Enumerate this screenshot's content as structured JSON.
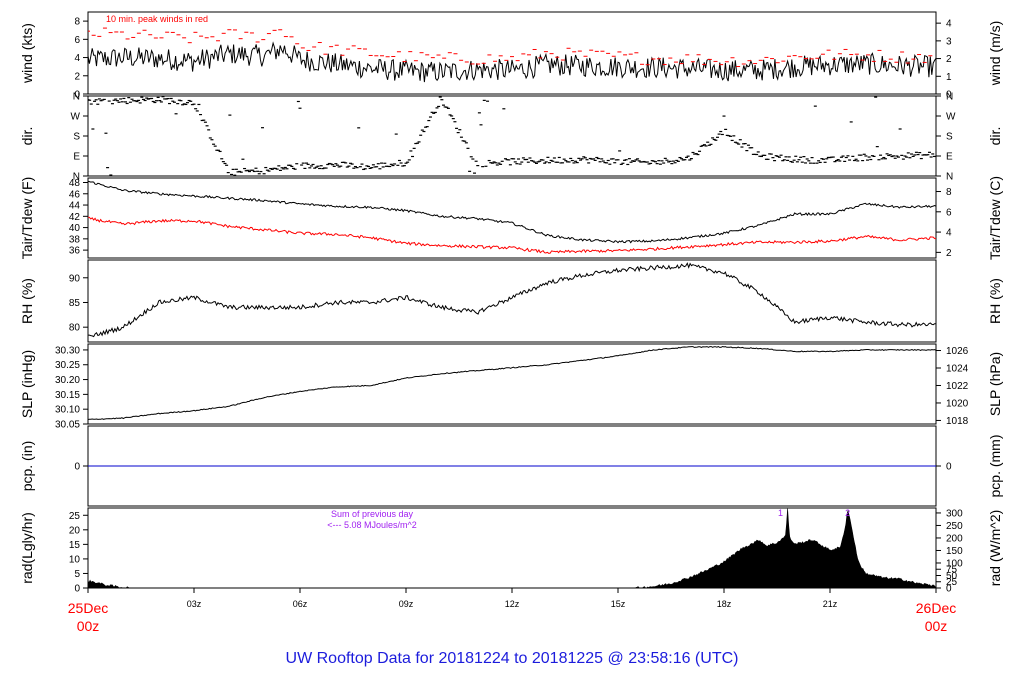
{
  "title": "UW Rooftop Data for 20181224  to  20181225 @ 23:58:16  (UTC)",
  "x_start_label": {
    "date": "25Dec",
    "hour": "00z"
  },
  "x_end_label": {
    "date": "26Dec",
    "hour": "00z"
  },
  "colors": {
    "accent_red": "#ff0000",
    "title_blue": "#1c1cdc",
    "precip_blue": "#0000cc",
    "annotation_purple": "#a020f0"
  },
  "chart_data": [
    {
      "id": "wind",
      "type": "line",
      "ylabel_left": "wind (kts)",
      "ylabel_right": "wind (m/s)",
      "ylim": [
        0,
        9
      ],
      "yticks": [
        "0",
        "2",
        "4",
        "6",
        "8"
      ],
      "right_ticks": [
        {
          "label": "0",
          "at": 0
        },
        {
          "label": "1",
          "at": 1.944
        },
        {
          "label": "2",
          "at": 3.888
        },
        {
          "label": "3",
          "at": 5.832
        },
        {
          "label": "4",
          "at": 7.776
        }
      ],
      "annotation": "10 min. peak winds in red",
      "x_hours": [
        0,
        1,
        2,
        3,
        4,
        5,
        5.5,
        6,
        7,
        8,
        9,
        10,
        11,
        12,
        13,
        14,
        15,
        16,
        17,
        18,
        19,
        20,
        21,
        22,
        23,
        24
      ],
      "series": [
        {
          "values": [
            3.8,
            4.0,
            3.9,
            3.6,
            4.4,
            4.2,
            5.0,
            3.8,
            3.3,
            2.8,
            2.5,
            2.4,
            2.7,
            2.6,
            3.2,
            3.1,
            3.0,
            2.9,
            2.8,
            2.6,
            2.6,
            3.0,
            3.2,
            3.3,
            3.1,
            3.0
          ]
        },
        {
          "values": [
            6.4,
            6.2,
            6.0,
            5.8,
            6.2,
            6.0,
            7.0,
            5.0,
            4.6,
            4.2,
            3.8,
            3.6,
            3.6,
            3.6,
            4.2,
            4.0,
            3.8,
            3.6,
            3.6,
            3.4,
            3.4,
            3.8,
            4.0,
            4.0,
            3.8,
            3.8
          ]
        }
      ]
    },
    {
      "id": "dir",
      "type": "scatter",
      "ylabel_left": "dir.",
      "ylabel_right": "dir.",
      "ylim": [
        0,
        360
      ],
      "yticks": [
        "N",
        "E",
        "S",
        "W",
        "N"
      ],
      "x_hours": [
        0,
        1,
        2,
        3,
        4,
        5,
        6,
        7,
        8,
        9,
        10,
        11,
        12,
        13,
        14,
        15,
        16,
        17,
        18,
        19,
        20,
        21,
        22,
        23,
        24
      ],
      "values": [
        335,
        340,
        345,
        330,
        15,
        25,
        45,
        50,
        40,
        60,
        350,
        55,
        65,
        70,
        75,
        65,
        60,
        80,
        200,
        90,
        75,
        70,
        85,
        90,
        95
      ]
    },
    {
      "id": "temp",
      "type": "line",
      "ylabel_left": "Tair/Tdew (F)",
      "ylabel_right": "Tair/Tdew (C)",
      "ylim": [
        34.6,
        48.8
      ],
      "yticks": [
        "36",
        "38",
        "40",
        "42",
        "44",
        "46",
        "48"
      ],
      "right_ticks": [
        {
          "label": "2",
          "at": 35.6
        },
        {
          "label": "4",
          "at": 39.2
        },
        {
          "label": "6",
          "at": 42.8
        },
        {
          "label": "8",
          "at": 46.4
        }
      ],
      "x_hours": [
        0,
        1,
        2,
        3,
        4,
        5,
        6,
        7,
        8,
        9,
        10,
        11,
        12,
        13,
        14,
        15,
        16,
        17,
        18,
        19,
        20,
        21,
        22,
        23,
        24
      ],
      "series": [
        {
          "values": [
            48.2,
            46.6,
            46.0,
            45.6,
            45.2,
            44.8,
            44.2,
            43.8,
            43.6,
            43.0,
            42.0,
            41.6,
            40.8,
            38.6,
            37.8,
            37.5,
            37.6,
            38.2,
            39.0,
            40.4,
            42.4,
            42.4,
            44.2,
            43.6,
            43.8
          ]
        },
        {
          "values": [
            41.6,
            40.6,
            41.2,
            41.2,
            40.2,
            39.6,
            39.0,
            38.8,
            38.2,
            37.2,
            36.8,
            36.6,
            36.4,
            35.6,
            35.8,
            35.9,
            36.2,
            36.6,
            37.0,
            37.4,
            37.4,
            37.6,
            38.4,
            37.8,
            38.2
          ]
        }
      ]
    },
    {
      "id": "rh",
      "type": "line",
      "ylabel_left": "RH (%)",
      "ylabel_right": "RH (%)",
      "ylim": [
        77,
        93.6
      ],
      "yticks": [
        "80",
        "85",
        "90"
      ],
      "x_hours": [
        0,
        1,
        2,
        3,
        4,
        5,
        6,
        7,
        8,
        9,
        10,
        11,
        12,
        13,
        14,
        15,
        16,
        17,
        18,
        19,
        20,
        21,
        22,
        23,
        24
      ],
      "values": [
        78,
        80,
        85,
        86,
        84,
        84,
        84,
        85,
        85,
        86,
        84,
        83,
        86,
        89,
        90.5,
        91.5,
        92,
        92.5,
        91,
        87,
        81,
        82,
        81,
        80.5,
        80.5
      ]
    },
    {
      "id": "slp",
      "type": "line",
      "ylabel_left": "SLP (inHg)",
      "ylabel_right": "SLP (hPa)",
      "ylim": [
        30.05,
        30.32
      ],
      "yticks": [
        "30.05",
        "30.10",
        "30.15",
        "30.20",
        "30.25",
        "30.30"
      ],
      "right_ticks": [
        {
          "label": "1018",
          "at": 30.062
        },
        {
          "label": "1020",
          "at": 30.121
        },
        {
          "label": "1022",
          "at": 30.18
        },
        {
          "label": "1024",
          "at": 30.239
        },
        {
          "label": "1026",
          "at": 30.298
        }
      ],
      "x_hours": [
        0,
        1,
        2,
        3,
        4,
        5,
        6,
        7,
        8,
        9,
        10,
        11,
        12,
        13,
        14,
        15,
        16,
        17,
        18,
        19,
        20,
        21,
        22,
        23,
        24
      ],
      "values": [
        30.065,
        30.07,
        30.085,
        30.095,
        30.11,
        30.14,
        30.16,
        30.175,
        30.18,
        30.205,
        30.22,
        30.23,
        30.24,
        30.25,
        30.265,
        30.28,
        30.3,
        30.31,
        30.31,
        30.305,
        30.295,
        30.295,
        30.3,
        30.3,
        30.3
      ]
    },
    {
      "id": "pcp",
      "type": "line",
      "ylabel_left": "pcp. (in)",
      "ylabel_right": "pcp. (mm)",
      "ylim": [
        -1,
        1
      ],
      "yticks": [
        "0"
      ],
      "right_ticks": [
        {
          "label": "0",
          "at": 0
        }
      ],
      "x_hours": [
        0,
        24
      ],
      "values": [
        0,
        0
      ]
    },
    {
      "id": "rad",
      "type": "area",
      "ylabel_left": "rad(Lgly/hr)",
      "ylabel_right": "rad (W/m^2)",
      "ylim": [
        0,
        27.5
      ],
      "yticks": [
        "0",
        "5",
        "10",
        "15",
        "20",
        "25"
      ],
      "right_ticks": [
        {
          "label": "0",
          "at": 0
        },
        {
          "label": "25",
          "at": 2.15
        },
        {
          "label": "50",
          "at": 4.3
        },
        {
          "label": "75",
          "at": 6.45
        },
        {
          "label": "100",
          "at": 8.6
        },
        {
          "label": "150",
          "at": 12.9
        },
        {
          "label": "200",
          "at": 17.2
        },
        {
          "label": "250",
          "at": 21.5
        },
        {
          "label": "300",
          "at": 25.8
        }
      ],
      "annotation_lines": [
        "Sum of previous day",
        "<--- 5.08 MJoules/m^2"
      ],
      "peak_labels": [
        {
          "label": "1",
          "x": 19.6
        },
        {
          "label": "2",
          "x": 21.5
        }
      ],
      "x_hours": [
        0,
        0.2,
        0.5,
        0.9,
        1.2,
        15.5,
        16,
        16.5,
        17,
        17.5,
        18,
        18.5,
        19,
        19.2,
        19.5,
        19.75,
        19.8,
        19.85,
        20,
        20.5,
        21,
        21.3,
        21.45,
        21.5,
        21.6,
        21.8,
        22,
        22.5,
        23,
        23.5,
        24
      ],
      "values": [
        2.4,
        2.0,
        1.0,
        0.3,
        0,
        0,
        0.5,
        1.5,
        3.5,
        6.0,
        9.0,
        13.5,
        16.5,
        14.5,
        15.5,
        18.0,
        27.5,
        17.5,
        15.0,
        16.5,
        13.0,
        14.0,
        22.0,
        27.5,
        21.5,
        9.0,
        5.0,
        3.5,
        3.0,
        1.5,
        0.8
      ]
    }
  ],
  "x_axis": {
    "ticks": [
      "03z",
      "06z",
      "09z",
      "12z",
      "15z",
      "18z",
      "21z"
    ]
  }
}
